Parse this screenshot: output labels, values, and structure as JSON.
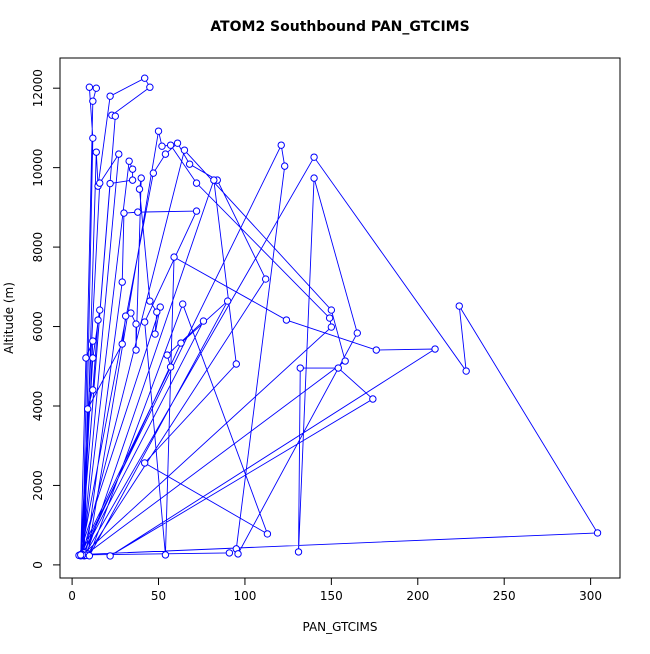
{
  "chart_data": {
    "type": "line",
    "markers": true,
    "title": "ATOM2 Southbound PAN_GTCIMS",
    "x_label": "PAN_GTCIMS",
    "y_label": "Altitude (m)",
    "color": "#0000ff",
    "x": [
      5,
      8,
      12,
      6,
      12,
      14,
      10,
      12,
      7,
      14,
      15,
      22,
      42,
      45,
      23,
      25,
      5,
      16,
      27,
      6,
      33,
      35,
      35,
      22,
      5,
      47,
      54,
      61,
      68,
      84,
      112,
      9,
      50,
      52,
      57,
      72,
      149,
      150,
      6,
      65,
      150,
      158,
      7,
      140,
      228,
      224,
      304,
      5,
      121,
      123,
      95,
      96,
      165,
      140,
      131,
      132,
      154,
      174,
      22,
      210,
      176,
      124,
      59,
      54,
      42,
      72,
      38,
      30,
      29,
      8,
      82,
      95,
      42,
      113,
      64,
      10,
      90,
      63,
      6,
      76,
      55,
      57,
      4,
      51,
      48,
      49,
      45,
      39,
      40,
      37,
      37,
      34,
      31,
      29,
      9,
      12,
      15,
      16,
      12,
      5,
      91
    ],
    "values": [
      250,
      5208,
      5635,
      240,
      11673,
      12000,
      12025,
      10742,
      300,
      10390,
      9535,
      11799,
      12252,
      12025,
      11321,
      11296,
      240,
      9610,
      10340,
      260,
      10163,
      9962,
      9686,
      9600,
      230,
      9862,
      10340,
      10616,
      10088,
      9686,
      7195,
      270,
      10918,
      10540,
      10566,
      9610,
      6214,
      5987,
      250,
      10440,
      6415,
      5132,
      230,
      10264,
      4880,
      6516,
      805,
      260,
      10566,
      10038,
      403,
      277,
      5836,
      9736,
      327,
      4956,
      4956,
      4176,
      226,
      5434,
      5409,
      6164,
      7748,
      252,
      6113,
      8906,
      8880,
      8855,
      7119,
      240,
      9686,
      5057,
      2566,
      780,
      6566,
      230,
      6641,
      5585,
      250,
      6138,
      5283,
      4981,
      240,
      6490,
      5811,
      6365,
      6641,
      9459,
      9736,
      5409,
      6063,
      6340,
      6264,
      5560,
      3925,
      4403,
      6164,
      6415,
      5208,
      250,
      302
    ],
    "xlim": [
      -7,
      317
    ],
    "ylim": [
      -330,
      12760
    ],
    "xticks": [
      0,
      50,
      100,
      150,
      200,
      250,
      300
    ],
    "yticks": [
      0,
      2000,
      4000,
      6000,
      8000,
      10000,
      12000
    ]
  }
}
